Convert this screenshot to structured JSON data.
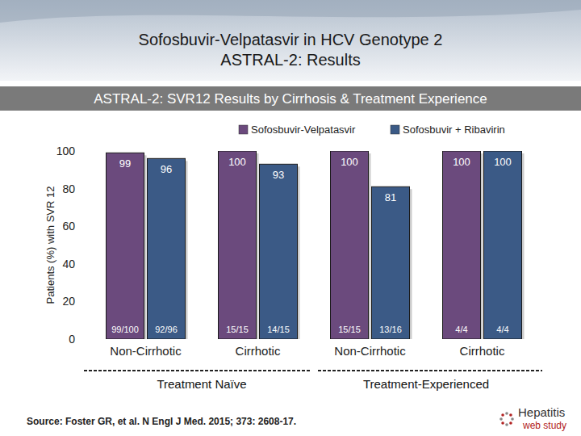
{
  "chart_data": {
    "type": "bar",
    "title": "Sofosbuvir-Velpatasvir in HCV Genotype 2",
    "subtitle": "ASTRAL-2: Results",
    "heading": "ASTRAL-2: SVR12 Results by Cirrhosis & Treatment Experience",
    "y_label": "Patients (%) with SVR 12",
    "categories": [
      "Non-Cirrhotic",
      "Cirrhotic",
      "Non-Cirrhotic",
      "Cirrhotic"
    ],
    "group_labels": [
      "Treatment Naïve",
      "Treatment-Experienced"
    ],
    "series": [
      {
        "name": "Sofosbuvir-Velpatasvir",
        "color": "#6b4a7d",
        "values": [
          99,
          100,
          100,
          100
        ],
        "n_labels": [
          "99/100",
          "15/15",
          "15/15",
          "4/4"
        ]
      },
      {
        "name": "Sofosbuvir + Ribavirin",
        "color": "#3b5a86",
        "values": [
          96,
          93,
          81,
          100
        ],
        "n_labels": [
          "92/96",
          "14/15",
          "13/16",
          "4/4"
        ]
      }
    ],
    "ylim": [
      0,
      100
    ],
    "yticks": [
      0,
      20,
      40,
      60,
      80,
      100
    ],
    "grid": false,
    "legend": "top",
    "data_labels": true,
    "source": "Source: Foster GR, et al. N Engl J Med. 2015; 373: 2608-17.",
    "logo": [
      "Hepatitis",
      "web study"
    ]
  }
}
